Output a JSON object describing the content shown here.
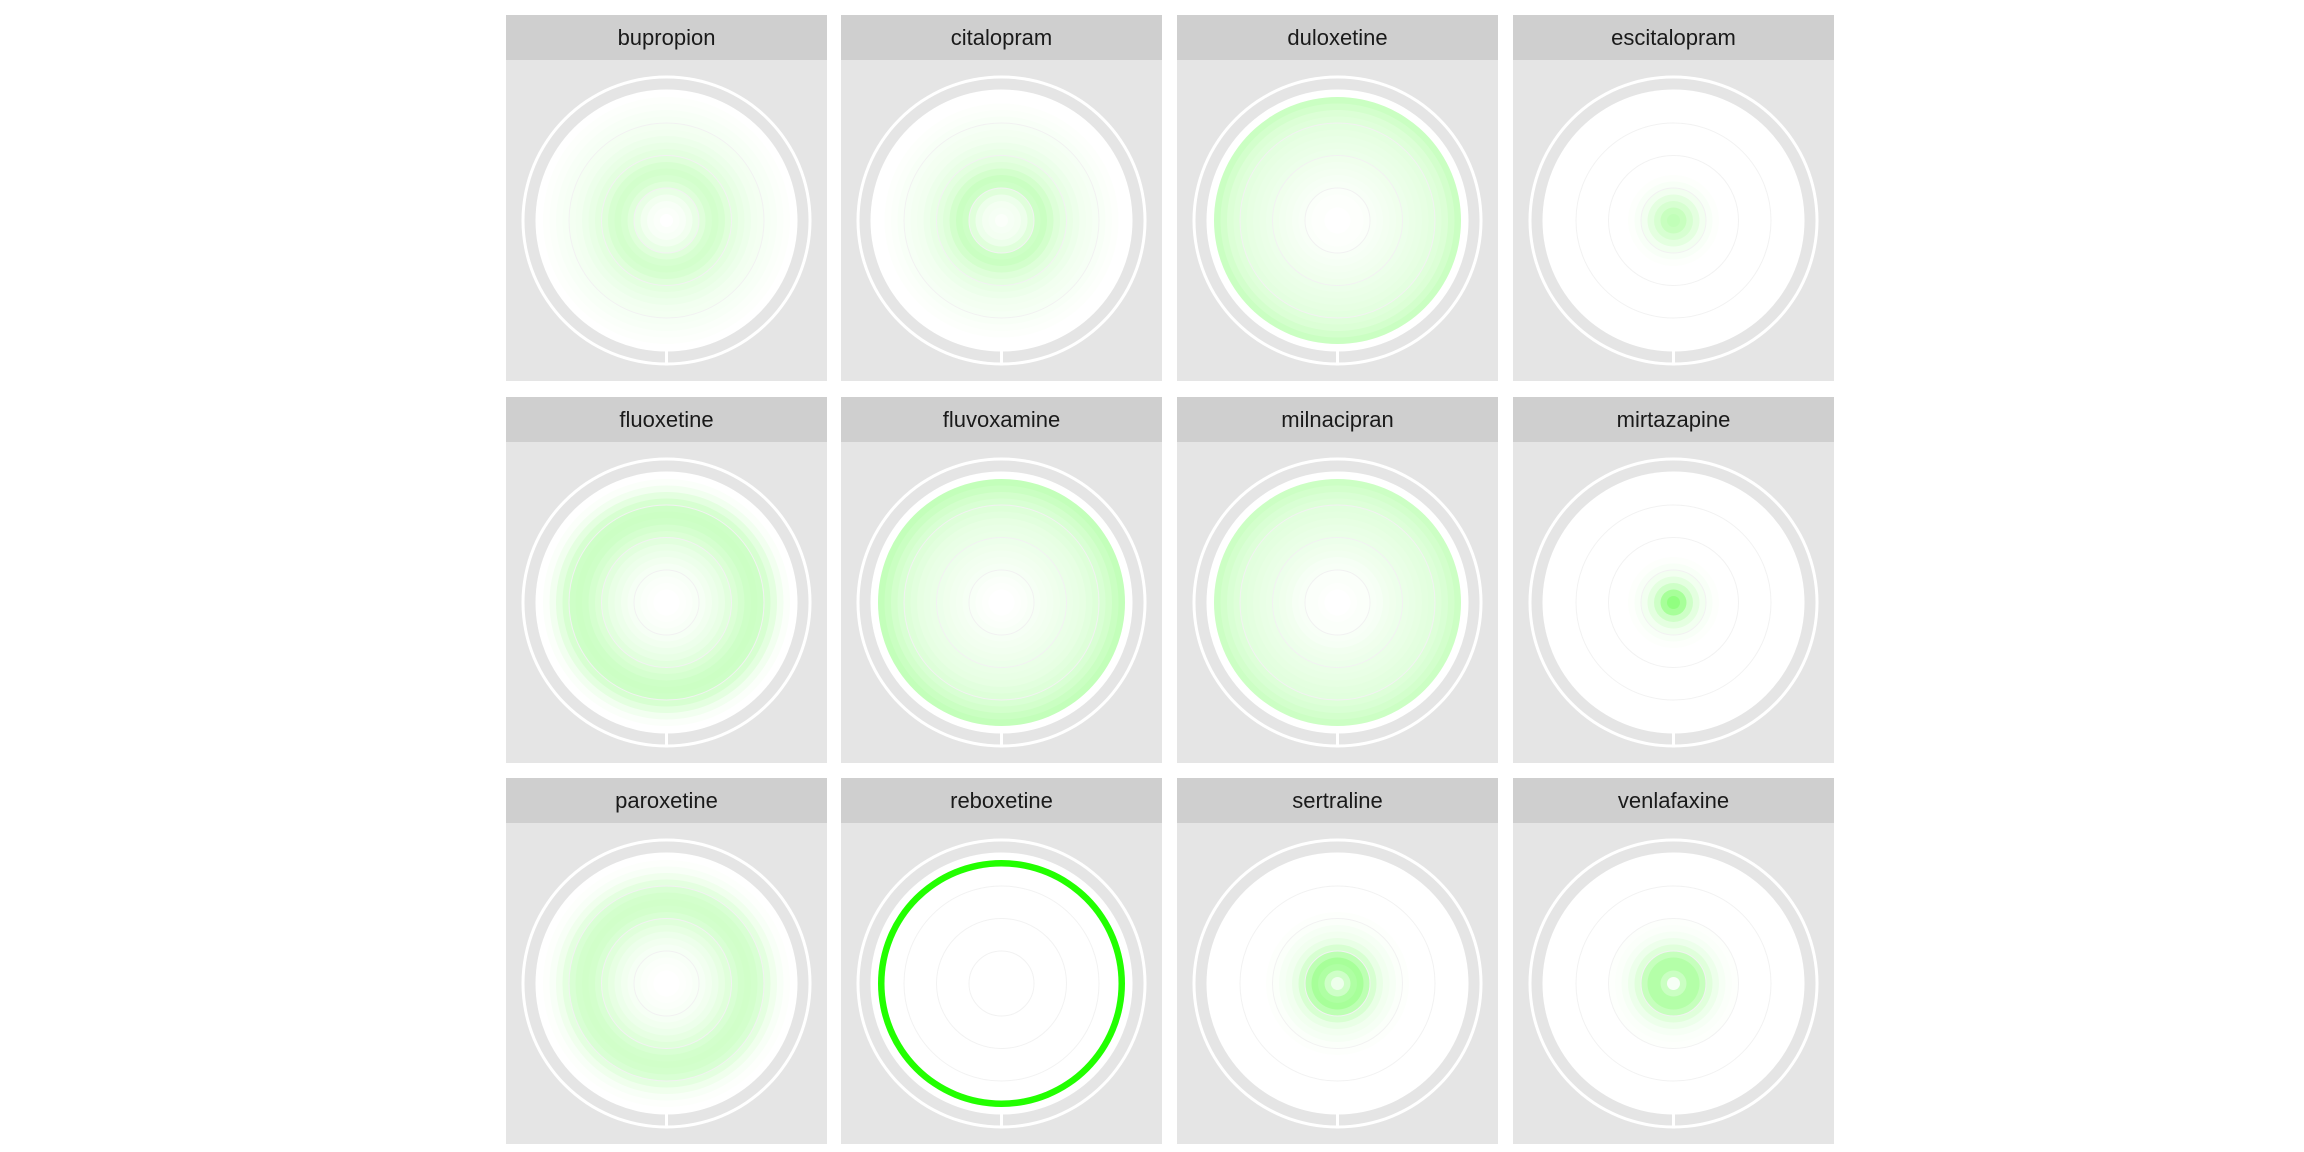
{
  "chart_data": {
    "type": "radial_heatmap",
    "facet_layout": {
      "rows": 3,
      "cols": 4
    },
    "color_scale": {
      "low": "#ffffff",
      "high": "#22ff00"
    },
    "panel_background": "#e5e5e5",
    "strip_background": "#cfcfcf",
    "facets": [
      {
        "name": "bupropion",
        "rings": [
          0.0,
          0.02,
          0.03,
          0.06,
          0.1,
          0.14,
          0.18,
          0.2,
          0.18,
          0.14,
          0.12,
          0.1,
          0.08,
          0.06,
          0.05,
          0.04,
          0.03,
          0.02,
          0.01,
          0.0
        ]
      },
      {
        "name": "citalopram",
        "rings": [
          0.02,
          0.04,
          0.05,
          0.08,
          0.14,
          0.22,
          0.24,
          0.2,
          0.15,
          0.12,
          0.1,
          0.08,
          0.06,
          0.05,
          0.04,
          0.03,
          0.02,
          0.01,
          0.0,
          0.0
        ]
      },
      {
        "name": "duloxetine",
        "rings": [
          0.0,
          0.0,
          0.01,
          0.01,
          0.02,
          0.03,
          0.04,
          0.05,
          0.06,
          0.07,
          0.08,
          0.09,
          0.1,
          0.11,
          0.12,
          0.14,
          0.16,
          0.2,
          0.24,
          0.0
        ]
      },
      {
        "name": "escitalopram",
        "rings": [
          0.28,
          0.25,
          0.18,
          0.12,
          0.06,
          0.03,
          0.01,
          0.0,
          0.0,
          0.0,
          0.0,
          0.0,
          0.0,
          0.0,
          0.0,
          0.0,
          0.0,
          0.0,
          0.0,
          0.0
        ]
      },
      {
        "name": "fluoxetine",
        "rings": [
          0.0,
          0.0,
          0.01,
          0.02,
          0.03,
          0.04,
          0.06,
          0.08,
          0.1,
          0.13,
          0.16,
          0.19,
          0.22,
          0.23,
          0.22,
          0.18,
          0.12,
          0.06,
          0.02,
          0.0
        ]
      },
      {
        "name": "fluvoxamine",
        "rings": [
          0.0,
          0.0,
          0.01,
          0.02,
          0.03,
          0.04,
          0.05,
          0.06,
          0.07,
          0.08,
          0.09,
          0.1,
          0.11,
          0.13,
          0.15,
          0.17,
          0.2,
          0.24,
          0.27,
          0.0
        ]
      },
      {
        "name": "milnacipran",
        "rings": [
          0.0,
          0.0,
          0.01,
          0.02,
          0.02,
          0.03,
          0.04,
          0.06,
          0.07,
          0.08,
          0.09,
          0.1,
          0.11,
          0.12,
          0.13,
          0.15,
          0.17,
          0.2,
          0.23,
          0.0
        ]
      },
      {
        "name": "mirtazapine",
        "rings": [
          0.5,
          0.4,
          0.22,
          0.12,
          0.06,
          0.03,
          0.01,
          0.0,
          0.0,
          0.0,
          0.0,
          0.0,
          0.0,
          0.0,
          0.0,
          0.0,
          0.0,
          0.0,
          0.0,
          0.0
        ]
      },
      {
        "name": "paroxetine",
        "rings": [
          0.0,
          0.0,
          0.01,
          0.02,
          0.03,
          0.04,
          0.06,
          0.08,
          0.11,
          0.14,
          0.17,
          0.2,
          0.21,
          0.2,
          0.17,
          0.12,
          0.07,
          0.03,
          0.01,
          0.0
        ]
      },
      {
        "name": "reboxetine",
        "rings": [
          0.0,
          0.0,
          0.0,
          0.0,
          0.0,
          0.0,
          0.0,
          0.0,
          0.0,
          0.0,
          0.0,
          0.0,
          0.0,
          0.0,
          0.0,
          0.0,
          0.0,
          0.0,
          1.0,
          0.0
        ]
      },
      {
        "name": "sertraline",
        "rings": [
          0.08,
          0.22,
          0.36,
          0.4,
          0.3,
          0.18,
          0.1,
          0.06,
          0.04,
          0.02,
          0.01,
          0.0,
          0.0,
          0.0,
          0.0,
          0.0,
          0.0,
          0.0,
          0.0,
          0.0
        ]
      },
      {
        "name": "venlafaxine",
        "rings": [
          0.04,
          0.24,
          0.34,
          0.34,
          0.26,
          0.14,
          0.08,
          0.04,
          0.02,
          0.01,
          0.0,
          0.0,
          0.0,
          0.0,
          0.0,
          0.0,
          0.0,
          0.0,
          0.0,
          0.0
        ]
      }
    ]
  }
}
